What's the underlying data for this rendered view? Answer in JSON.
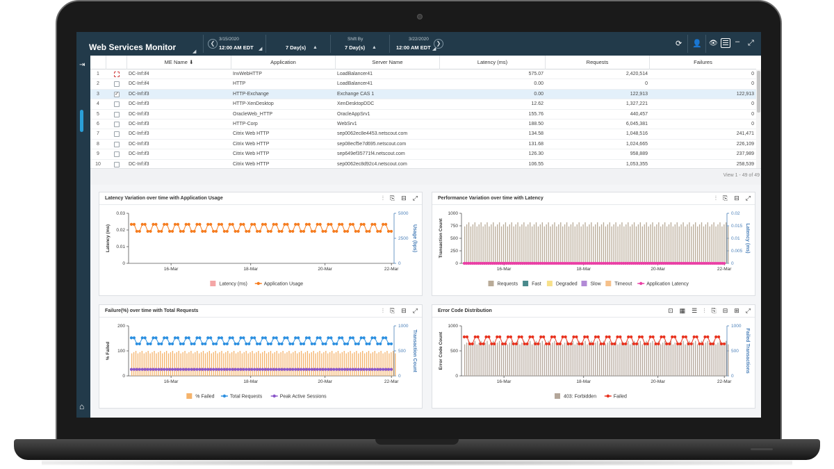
{
  "app": {
    "title": "Web Services Monitor"
  },
  "timebar": {
    "start_date": "3/15/2020",
    "start_time": "12:00 AM EDT",
    "duration": "7 Day(s)",
    "shift_label": "Shift By",
    "shift_value": "7 Day(s)",
    "end_date": "3/22/2020",
    "end_time": "12:00 AM EDT"
  },
  "table": {
    "columns": [
      "ME Name",
      "Application",
      "Server Name",
      "Latency (ms)",
      "Requests",
      "Failures"
    ],
    "rows": [
      {
        "idx": "1",
        "me": "DC-Inf:if4",
        "app": "InvWebHTTP",
        "server": "LoadBalancer41",
        "latency": "575.07",
        "requests": "2,420,514",
        "failures": "0",
        "check": "dotted"
      },
      {
        "idx": "2",
        "me": "DC-Inf:if4",
        "app": "HTTP",
        "server": "LoadBalancer41",
        "latency": "0.00",
        "requests": "0",
        "failures": "0",
        "check": "empty"
      },
      {
        "idx": "3",
        "me": "DC-Inf:if3",
        "app": "HTTP-Exchange",
        "server": "Exchange CAS 1",
        "latency": "0.00",
        "requests": "122,913",
        "failures": "122,913",
        "check": "checked"
      },
      {
        "idx": "4",
        "me": "DC-Inf:if3",
        "app": "HTTP-XenDesktop",
        "server": "XenDesktopDDC",
        "latency": "12.62",
        "requests": "1,327,221",
        "failures": "0",
        "check": "empty"
      },
      {
        "idx": "5",
        "me": "DC-Inf:if3",
        "app": "OracleWeb_HTTP",
        "server": "OracleAppSrv1",
        "latency": "155.76",
        "requests": "440,457",
        "failures": "0",
        "check": "empty"
      },
      {
        "idx": "6",
        "me": "DC-Inf:if3",
        "app": "HTTP-Corp",
        "server": "WebSrv1",
        "latency": "188.50",
        "requests": "6,045,381",
        "failures": "0",
        "check": "empty"
      },
      {
        "idx": "7",
        "me": "DC-Inf:if3",
        "app": "Citrix Web HTTP",
        "server": "sep0062ec8e4453.netscout.com",
        "latency": "134.58",
        "requests": "1,048,516",
        "failures": "241,471",
        "check": "empty"
      },
      {
        "idx": "8",
        "me": "DC-Inf:if3",
        "app": "Citrix Web HTTP",
        "server": "sep08ecf5e7d695.netscout.com",
        "latency": "131.68",
        "requests": "1,024,665",
        "failures": "226,109",
        "check": "empty"
      },
      {
        "idx": "9",
        "me": "DC-Inf:if3",
        "app": "Citrix Web HTTP",
        "server": "sep649ef35771f4.netscout.com",
        "latency": "126.30",
        "requests": "958,889",
        "failures": "237,989",
        "check": "empty"
      },
      {
        "idx": "10",
        "me": "DC-Inf:if3",
        "app": "Citrix Web HTTP",
        "server": "sep0062ec8d92c4.netscout.com",
        "latency": "106.55",
        "requests": "1,053,355",
        "failures": "258,539",
        "check": "empty"
      }
    ],
    "pager": "View 1 - 49 of 49"
  },
  "chart_data": [
    {
      "type": "line",
      "title": "Latency Variation over time with Application Usage",
      "xlabel": "",
      "x_ticks": [
        "16-Mar",
        "18-Mar",
        "20-Mar",
        "22-Mar"
      ],
      "ylabel": "Latency (ms)",
      "ylim": [
        0,
        0.03
      ],
      "y_ticks": [
        "0",
        "0.01",
        "0.02",
        "0.03"
      ],
      "y2label": "Usage (bps)",
      "y2lim": [
        0,
        5000
      ],
      "y2_ticks": [
        "0",
        "2500",
        "5000"
      ],
      "series": [
        {
          "name": "Latency (ms)",
          "color": "#f4a6a6",
          "values": []
        },
        {
          "name": "Application Usage",
          "color": "#f57c1f",
          "axis": "right",
          "oscillate": [
            3200,
            3900
          ],
          "points": 96
        }
      ]
    },
    {
      "type": "bar",
      "title": "Performance Variation over time with Latency",
      "xlabel": "",
      "x_ticks": [
        "16-Mar",
        "18-Mar",
        "20-Mar",
        "22-Mar"
      ],
      "ylabel": "Transaction Count",
      "ylim": [
        0,
        1000
      ],
      "y_ticks": [
        "0",
        "250",
        "500",
        "750",
        "1000"
      ],
      "y2label": "Latency (ms)",
      "y2lim": [
        0,
        0.02
      ],
      "y2_ticks": [
        "0",
        "0.005",
        "0.01",
        "0.015",
        "0.02"
      ],
      "series": [
        {
          "name": "Requests",
          "color": "#b9ab98",
          "bar_level": 820,
          "points": 130
        },
        {
          "name": "Fast",
          "color": "#4a8a8c",
          "values": []
        },
        {
          "name": "Degraded",
          "color": "#f7e08a",
          "values": []
        },
        {
          "name": "Slow",
          "color": "#b28ad6",
          "values": []
        },
        {
          "name": "Timeout",
          "color": "#f5c08a",
          "values": []
        },
        {
          "name": "Application Latency",
          "color": "#ea3fa5",
          "axis": "right",
          "constant": 0,
          "points": 130
        }
      ]
    },
    {
      "type": "bar",
      "title": "Failure(%) over time with Total Requests",
      "xlabel": "",
      "x_ticks": [
        "16-Mar",
        "18-Mar",
        "20-Mar",
        "22-Mar"
      ],
      "ylabel": "% Failed",
      "ylim": [
        0,
        200
      ],
      "y_ticks": [
        "0",
        "100",
        "200"
      ],
      "y2label": "Transaction Count",
      "y2lim": [
        0,
        1000
      ],
      "y2_ticks": [
        "0",
        "500",
        "1000"
      ],
      "series": [
        {
          "name": "% Failed",
          "color": "#f5b36b",
          "bar_level": 100,
          "points": 130
        },
        {
          "name": "Total Requests",
          "color": "#2b8fe0",
          "axis": "right",
          "oscillate": [
            640,
            760
          ],
          "points": 96
        },
        {
          "name": "Peak Active Sessions",
          "color": "#8a55c9",
          "axis": "right",
          "constant": 130,
          "points": 96
        }
      ]
    },
    {
      "type": "bar",
      "title": "Error Code Distribution",
      "xlabel": "",
      "x_ticks": [
        "16-Mar",
        "18-Mar",
        "20-Mar",
        "22-Mar"
      ],
      "ylabel": "Error Code Count",
      "ylim": [
        0,
        1000
      ],
      "y_ticks": [
        "0",
        "500",
        "1000"
      ],
      "y2label": "Failed Transactions",
      "y2lim": [
        0,
        1000
      ],
      "y2_ticks": [
        "0",
        "500",
        "1000"
      ],
      "series": [
        {
          "name": "403: Forbidden",
          "color": "#b4a69a",
          "bar_level": 700,
          "points": 130
        },
        {
          "name": "Failed",
          "color": "#e8321e",
          "axis": "right",
          "oscillate": [
            640,
            780
          ],
          "points": 96
        }
      ]
    }
  ]
}
